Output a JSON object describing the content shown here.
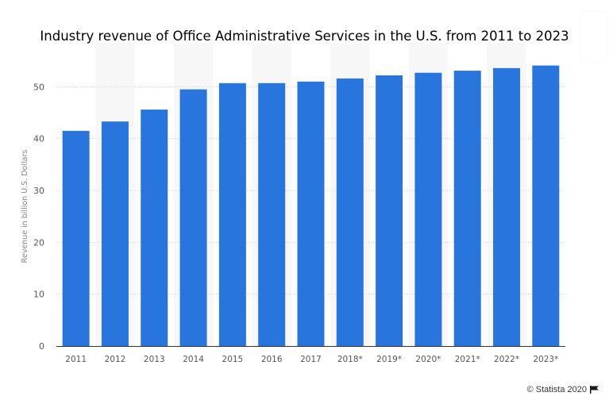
{
  "chart_data": {
    "type": "bar",
    "title": "Industry revenue of Office Administrative Services in the U.S. from 2011 to 2023",
    "ylabel": "Revenue in billion U.S. Dollars",
    "xlabel": "",
    "categories": [
      "2011",
      "2012",
      "2013",
      "2014",
      "2015",
      "2016",
      "2017",
      "2018*",
      "2019*",
      "2020*",
      "2021*",
      "2022*",
      "2023*"
    ],
    "values": [
      41.5,
      43.3,
      45.6,
      49.5,
      50.7,
      50.7,
      51.0,
      51.6,
      52.2,
      52.7,
      53.1,
      53.6,
      54.1
    ],
    "ylim": [
      0,
      60
    ],
    "yticks": [
      0,
      10,
      20,
      30,
      40,
      50
    ],
    "grid": true,
    "bar_color": "#2876dd",
    "band_color": "#f7f7f7"
  },
  "footer": {
    "credit": "© Statista 2020",
    "icon": "flag-icon"
  }
}
